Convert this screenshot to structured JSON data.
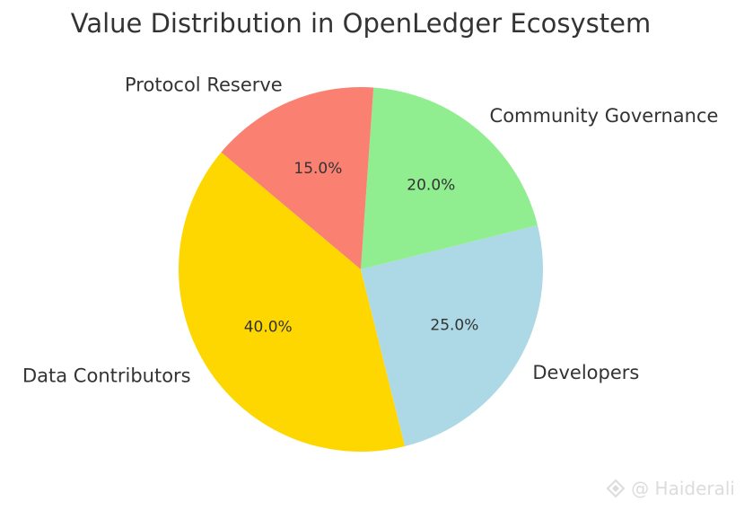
{
  "chart_data": {
    "type": "pie",
    "title": "Value Distribution in OpenLedger Ecosystem",
    "slices": [
      {
        "label": "Data Contributors",
        "value": 40.0,
        "pct_text": "40.0%",
        "color": "#FFD700"
      },
      {
        "label": "Developers",
        "value": 25.0,
        "pct_text": "25.0%",
        "color": "#ADD8E6"
      },
      {
        "label": "Community Governance",
        "value": 20.0,
        "pct_text": "20.0%",
        "color": "#90EE90"
      },
      {
        "label": "Protocol Reserve",
        "value": 15.0,
        "pct_text": "15.0%",
        "color": "#FA8072"
      }
    ],
    "start_angle_deg": 140,
    "direction": "counterclockwise"
  },
  "watermark": {
    "text": "@ Haiderali"
  }
}
